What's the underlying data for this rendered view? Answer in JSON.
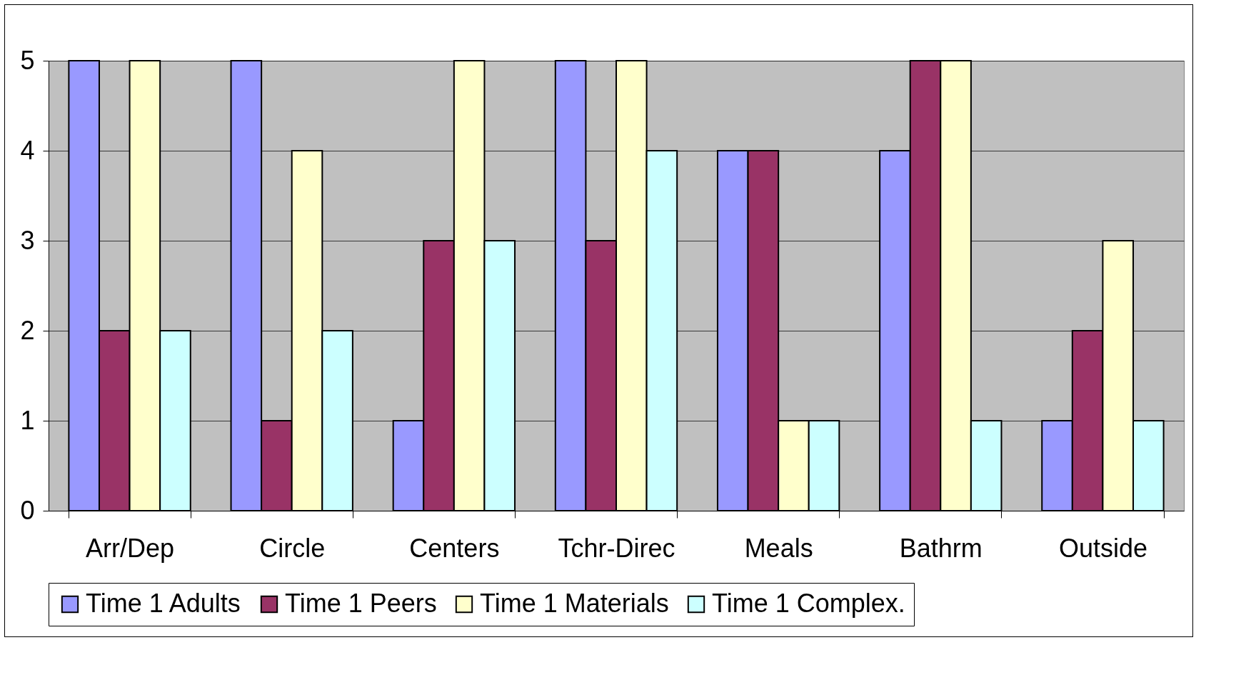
{
  "chart_data": {
    "type": "bar",
    "categories": [
      "Arr/Dep",
      "Circle",
      "Centers",
      "Tchr-Direc",
      "Meals",
      "Bathrm",
      "Outside"
    ],
    "series": [
      {
        "name": "Time 1 Adults",
        "color": "#9999ff",
        "values": [
          5,
          5,
          1,
          5,
          4,
          4,
          1
        ]
      },
      {
        "name": "Time 1 Peers",
        "color": "#993366",
        "values": [
          2,
          1,
          3,
          3,
          4,
          5,
          2
        ]
      },
      {
        "name": "Time 1 Materials",
        "color": "#ffffcc",
        "values": [
          5,
          4,
          5,
          5,
          1,
          5,
          3
        ]
      },
      {
        "name": "Time 1 Complex.",
        "color": "#ccffff",
        "values": [
          2,
          2,
          3,
          4,
          1,
          1,
          1
        ]
      }
    ],
    "ylim": [
      0,
      5
    ],
    "yticks": [
      0,
      1,
      2,
      3,
      4,
      5
    ],
    "grid": "y",
    "legend": "bottom"
  }
}
